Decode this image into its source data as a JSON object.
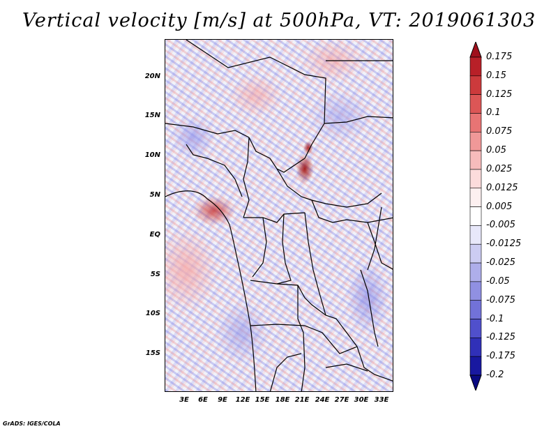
{
  "title": "Vertical velocity [m/s] at 500hPa, VT: 2019061303",
  "footer": "GrADS: IGES/COLA",
  "lat_ticks": [
    "20N",
    "15N",
    "10N",
    "5N",
    "EQ",
    "5S",
    "10S",
    "15S"
  ],
  "lon_ticks": [
    "3E",
    "6E",
    "9E",
    "12E",
    "15E",
    "18E",
    "21E",
    "24E",
    "27E",
    "30E",
    "33E"
  ],
  "colorbar": {
    "levels": [
      "0.175",
      "0.15",
      "0.125",
      "0.1",
      "0.075",
      "0.05",
      "0.025",
      "0.0125",
      "0.005",
      "-0.005",
      "-0.0125",
      "-0.025",
      "-0.05",
      "-0.075",
      "-0.1",
      "-0.125",
      "-0.175",
      "-0.2"
    ],
    "colors": [
      "#a0101c",
      "#b82028",
      "#cc3a3c",
      "#dc5656",
      "#e87474",
      "#f09898",
      "#f7bcbc",
      "#fcdcdc",
      "#fdf0f0",
      "#ffffff",
      "#e8e8fa",
      "#ccccf2",
      "#aeaeea",
      "#9090e2",
      "#7272d8",
      "#5050cc",
      "#3030b8",
      "#1818a0",
      "#0a0a82"
    ]
  }
}
